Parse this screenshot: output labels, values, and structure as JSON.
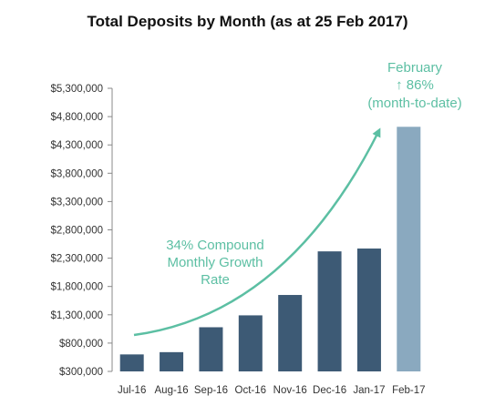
{
  "chart_data": {
    "type": "bar",
    "title": "Total Deposits by Month (as at 25 Feb 2017)",
    "xlabel": "",
    "ylabel": "",
    "categories": [
      "Jul-16",
      "Aug-16",
      "Sep-16",
      "Oct-16",
      "Nov-16",
      "Dec-16",
      "Jan-17",
      "Feb-17"
    ],
    "values": [
      600000,
      640000,
      1080000,
      1290000,
      1650000,
      2420000,
      2470000,
      4620000
    ],
    "ylim": [
      300000,
      5300000
    ],
    "yticks": [
      300000,
      800000,
      1300000,
      1800000,
      2300000,
      2800000,
      3300000,
      3800000,
      4300000,
      4800000,
      5300000
    ],
    "ytick_labels": [
      "$300,000",
      "$800,000",
      "$1,300,000",
      "$1,800,000",
      "$2,300,000",
      "$2,800,000",
      "$3,300,000",
      "$3,800,000",
      "$4,300,000",
      "$4,800,000",
      "$5,300,000"
    ],
    "grid": false,
    "legend": "none",
    "bar_colors": [
      "#3d5a75",
      "#3d5a75",
      "#3d5a75",
      "#3d5a75",
      "#3d5a75",
      "#3d5a75",
      "#3d5a75",
      "#8aa9bf"
    ],
    "annotations": {
      "growth": [
        "34% Compound",
        "Monthly Growth",
        "Rate"
      ],
      "february": [
        "February",
        "↑ 86%",
        "(month-to-date)"
      ]
    },
    "colors": {
      "axis": "#888888",
      "annotation": "#5cbfa3"
    }
  }
}
